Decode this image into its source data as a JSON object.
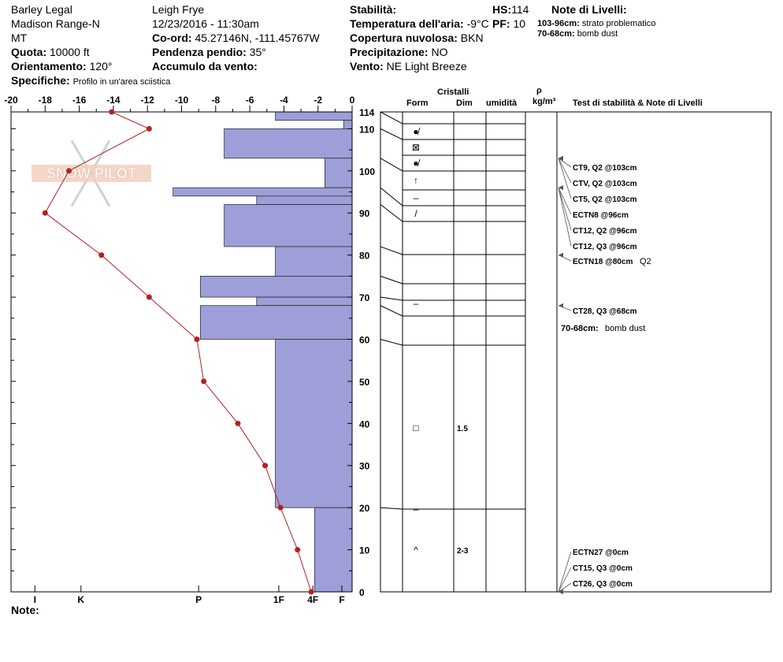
{
  "header": {
    "location": "Barley Legal",
    "range": "Madison Range-N",
    "state": "MT",
    "elevation_label": "Quota:",
    "elevation_value": "10000 ft",
    "aspect_label": "Orientamento:",
    "aspect_value": "120°",
    "specifics_label": "Specifiche:",
    "specifics_value": "Profilo in un'area sciistica",
    "observer": "Leigh Frye",
    "datetime": "12/23/2016 - 11:30am",
    "coord_label": "Co-ord:",
    "coord_value": "45.27146N, -111.45767W",
    "slope_label": "Pendenza pendio:",
    "slope_value": "35°",
    "wind_load_label": "Accumulo da vento:",
    "stability_label": "Stabilità:",
    "air_temp_label": "Temperatura dell'aria:",
    "air_temp_value": "-9°C",
    "cloud_label": "Copertura nuvolosa:",
    "cloud_value": "BKN",
    "precip_label": "Precipitazione:",
    "precip_value": "NO",
    "wind_label": "Vento:",
    "wind_value": "NE Light Breeze",
    "hs_label": "HS:",
    "hs_value": "114",
    "pf_label": "PF:",
    "pf_value": "10",
    "layer_notes_label": "Note di Livelli:",
    "layer_notes": [
      {
        "range": "103-96cm:",
        "text": "strato problematico"
      },
      {
        "range": "70-68cm:",
        "text": "bomb dust"
      }
    ]
  },
  "columns": {
    "crystals": "Cristalli",
    "form": "Form",
    "dim": "Dim",
    "humidity": "umidità",
    "rho": "ρ",
    "density_unit": "kg/m³",
    "tests": "Test di stabilità & Note di Livelli"
  },
  "notes_label": "Note:",
  "watermark": "SNOW PILOT",
  "chart_data": {
    "type": "snow-profile",
    "temperature_axis": {
      "ticks": [
        -20,
        -18,
        -16,
        -14,
        -12,
        -10,
        -8,
        -6,
        -4,
        -2,
        0
      ],
      "range": [
        -20,
        0
      ]
    },
    "height_axis": {
      "ticks": [
        0,
        10,
        20,
        30,
        40,
        50,
        60,
        70,
        80,
        90,
        100,
        110,
        114
      ],
      "range": [
        0,
        114
      ],
      "unit": "cm"
    },
    "hardness_axis": {
      "labels": [
        "I",
        "K",
        "P",
        "1F",
        "4F",
        "F"
      ]
    },
    "temperature_profile": [
      {
        "h": 114,
        "t": -14.1
      },
      {
        "h": 110,
        "t": -11.9
      },
      {
        "h": 100,
        "t": -16.6
      },
      {
        "h": 90,
        "t": -18.0
      },
      {
        "h": 80,
        "t": -14.7
      },
      {
        "h": 70,
        "t": -11.9
      },
      {
        "h": 60,
        "t": -9.1
      },
      {
        "h": 50,
        "t": -8.7
      },
      {
        "h": 40,
        "t": -6.7
      },
      {
        "h": 30,
        "t": -5.1
      },
      {
        "h": 20,
        "t": -4.2
      },
      {
        "h": 10,
        "t": -3.2
      },
      {
        "h": 0,
        "t": -2.4
      }
    ],
    "hardness_layers": [
      {
        "top": 114,
        "bottom": 112,
        "t": -4.5
      },
      {
        "top": 112,
        "bottom": 110,
        "t": -0.5
      },
      {
        "top": 110,
        "bottom": 103,
        "t": -7.5
      },
      {
        "top": 103,
        "bottom": 96,
        "t": -1.6
      },
      {
        "top": 96,
        "bottom": 94,
        "t": -10.5
      },
      {
        "top": 94,
        "bottom": 92,
        "t": -5.6
      },
      {
        "top": 92,
        "bottom": 82,
        "t": -7.5
      },
      {
        "top": 82,
        "bottom": 75,
        "t": -4.5
      },
      {
        "top": 75,
        "bottom": 70,
        "t": -8.9
      },
      {
        "top": 70,
        "bottom": 68,
        "t": -5.6
      },
      {
        "top": 68,
        "bottom": 60,
        "t": -8.9
      },
      {
        "top": 60,
        "bottom": 20,
        "t": -4.5
      },
      {
        "top": 20,
        "bottom": 0,
        "t": -2.2
      }
    ],
    "layer_boundaries": [
      114,
      110,
      103,
      96,
      92,
      82,
      75,
      70,
      68,
      60,
      20,
      0
    ],
    "crystal_rows": [
      {
        "h": 112,
        "symbol": "●̸",
        "dim": ""
      },
      {
        "h": 108,
        "symbol": "⊠",
        "dim": ""
      },
      {
        "h": 104.5,
        "symbol": "●̸",
        "dim": ""
      },
      {
        "h": 100,
        "symbol": "↑",
        "dim": ""
      },
      {
        "h": 96,
        "symbol": "–",
        "dim": ""
      },
      {
        "h": 92,
        "symbol": "/",
        "dim": ""
      },
      {
        "h": 70,
        "symbol": "–",
        "dim": ""
      },
      {
        "h": 40,
        "symbol": "□",
        "dim": "1.5"
      },
      {
        "h": 20,
        "symbol": "–",
        "dim": ""
      },
      {
        "h": 10,
        "symbol": "^",
        "dim": "2-3"
      }
    ],
    "stability_tests": [
      {
        "label": "CT9, Q2 @103cm",
        "h": 103
      },
      {
        "label": "CTV, Q2 @103cm",
        "h": 103
      },
      {
        "label": "CT5, Q2 @103cm",
        "h": 103
      },
      {
        "label": "ECTN8 @96cm",
        "h": 96
      },
      {
        "label": "CT12, Q2 @96cm",
        "h": 96
      },
      {
        "label": "CT12, Q3 @96cm",
        "h": 96
      },
      {
        "label": "ECTN18 @80cm",
        "h": 80,
        "extra": "Q2"
      },
      {
        "label": "CT28, Q3 @68cm",
        "h": 68
      },
      {
        "label": "ECTN27 @0cm",
        "h": 0
      },
      {
        "label": "CT15, Q3 @0cm",
        "h": 0
      },
      {
        "label": "CT26, Q3 @0cm",
        "h": 0
      }
    ],
    "inline_note": {
      "range": "70-68cm:",
      "text": "bomb dust"
    }
  }
}
